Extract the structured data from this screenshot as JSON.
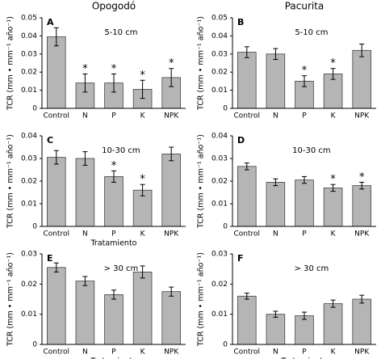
{
  "chart_data": [
    {
      "type": "bar",
      "panel_label": "A",
      "title": "Opogodó",
      "annotation": "5-10 cm",
      "ylabel": "TCR (mm • mm⁻¹ año⁻¹)",
      "categories": [
        "Control",
        "N",
        "P",
        "K",
        "NPK"
      ],
      "values": [
        0.0395,
        0.014,
        0.014,
        0.0105,
        0.017
      ],
      "errors": [
        0.005,
        0.005,
        0.005,
        0.005,
        0.005
      ],
      "significance": [
        null,
        "*",
        "*",
        "*",
        "*"
      ],
      "color": "#b5b5b5",
      "ylim": [
        0,
        0.05
      ],
      "yticks": [
        0,
        0.01,
        0.02,
        0.03,
        0.04,
        0.05
      ]
    },
    {
      "type": "bar",
      "panel_label": "B",
      "title": "Pacurita",
      "annotation": "5-10 cm",
      "ylabel": "TCR (mm • mm⁻¹ año⁻¹)",
      "categories": [
        "Control",
        "N",
        "P",
        "K",
        "NPK"
      ],
      "values": [
        0.031,
        0.03,
        0.015,
        0.019,
        0.032
      ],
      "errors": [
        0.003,
        0.003,
        0.003,
        0.003,
        0.0035
      ],
      "significance": [
        null,
        null,
        "*",
        "*",
        null
      ],
      "color": "#b5b5b5",
      "ylim": [
        0,
        0.05
      ],
      "yticks": [
        0,
        0.01,
        0.02,
        0.03,
        0.04,
        0.05
      ]
    },
    {
      "type": "bar",
      "panel_label": "C",
      "annotation": "10-30 cm",
      "ylabel": "TCR (mm • mm⁻¹ año⁻¹)",
      "xlabel": "Tratamiento",
      "categories": [
        "Control",
        "N",
        "P",
        "K",
        "NPK"
      ],
      "values": [
        0.0305,
        0.03,
        0.022,
        0.016,
        0.032
      ],
      "errors": [
        0.003,
        0.003,
        0.0025,
        0.0025,
        0.003
      ],
      "significance": [
        null,
        null,
        "*",
        "*",
        null
      ],
      "color": "#b5b5b5",
      "ylim": [
        0,
        0.04
      ],
      "yticks": [
        0,
        0.01,
        0.02,
        0.03,
        0.04
      ]
    },
    {
      "type": "bar",
      "panel_label": "D",
      "annotation": "10-30 cm",
      "ylabel": "TCR (mm • mm⁻¹ año⁻¹)",
      "categories": [
        "Control",
        "N",
        "P",
        "K",
        "NPK"
      ],
      "values": [
        0.0265,
        0.0195,
        0.0205,
        0.017,
        0.018
      ],
      "errors": [
        0.0015,
        0.0015,
        0.0015,
        0.0015,
        0.0015
      ],
      "significance": [
        null,
        null,
        null,
        "*",
        "*"
      ],
      "color": "#b5b5b5",
      "ylim": [
        0,
        0.04
      ],
      "yticks": [
        0,
        0.01,
        0.02,
        0.03,
        0.04
      ]
    },
    {
      "type": "bar",
      "panel_label": "E",
      "annotation": "> 30 cm",
      "ylabel": "TCR (mm • mm⁻¹ año⁻¹)",
      "xlabel": "Tratamiento",
      "categories": [
        "Control",
        "N",
        "P",
        "K",
        "NPK"
      ],
      "values": [
        0.0255,
        0.021,
        0.0165,
        0.024,
        0.0175
      ],
      "errors": [
        0.0015,
        0.0015,
        0.0015,
        0.002,
        0.0015
      ],
      "significance": [
        null,
        null,
        null,
        null,
        null
      ],
      "color": "#b5b5b5",
      "ylim": [
        0,
        0.03
      ],
      "yticks": [
        0,
        0.01,
        0.02,
        0.03
      ]
    },
    {
      "type": "bar",
      "panel_label": "F",
      "annotation": "> 30 cm",
      "ylabel": "TCR (mm • mm⁻¹ año⁻¹)",
      "xlabel": "Tratamiento",
      "categories": [
        "Control",
        "N",
        "P",
        "K",
        "NPK"
      ],
      "values": [
        0.016,
        0.01,
        0.0095,
        0.0135,
        0.015
      ],
      "errors": [
        0.001,
        0.001,
        0.0012,
        0.0012,
        0.0013
      ],
      "significance": [
        null,
        null,
        null,
        null,
        null
      ],
      "color": "#b5b5b5",
      "ylim": [
        0,
        0.03
      ],
      "yticks": [
        0,
        0.01,
        0.02,
        0.03
      ]
    }
  ]
}
